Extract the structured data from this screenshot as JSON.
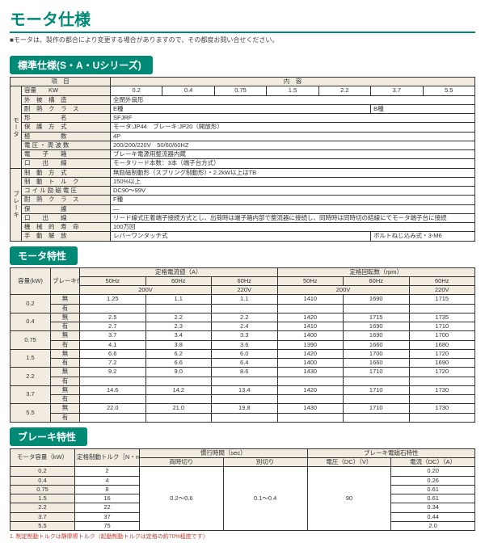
{
  "title": "モータ仕様",
  "note": "■モータは、製作の都合により変更する場合がありますので、その都度お問い合せください。",
  "section1": {
    "title": "標準仕様(S・A・Uシリーズ)",
    "head_l": "項　目",
    "head_r": "内　容",
    "kw_label": "容量　　KW",
    "kw_vals": [
      "0.2",
      "0.4",
      "0.75",
      "1.5",
      "2.2",
      "3.7",
      "5.5"
    ],
    "motor_group": "モータ",
    "brake_group": "ブレーキ",
    "rows": [
      {
        "l": "外　被　構　造",
        "v": "全閉外扇形"
      },
      {
        "l": "耐　熱　ク　ラ　ス",
        "v": "E種",
        "v2": "B種"
      },
      {
        "l": "形　　　　　名",
        "v": "SFJRF"
      },
      {
        "l": "保　護　方　式",
        "v": "モータ:JP44　ブレーキ:JP20（開放形）"
      },
      {
        "l": "極　　　　　数",
        "v": "4P"
      },
      {
        "l": "電 圧 ・ 周 波 数",
        "v": "200/200/220V　50/60/60HZ"
      },
      {
        "l": "電　　子　　箱",
        "v": "ブレーキ電源用整流器内蔵"
      },
      {
        "l": "口　　出　　線",
        "v": "モータリード本数：3本（端子台方式）"
      },
      {
        "l": "制　動　方　式",
        "v": "無励磁制動形（スプリング制動形）・2.2kW以上はTB"
      },
      {
        "l": "制　動　ト　ル　ク",
        "v": "150%以上"
      },
      {
        "l": "コ イ ル 励 磁 電 圧",
        "v": "DC90～99V"
      },
      {
        "l": "耐　熱　ク　ラ　ス",
        "v": "F種"
      },
      {
        "l": "保　　　　　護",
        "v": "—"
      },
      {
        "l": "口　　出　　線",
        "v": "リード線式圧着端子接続方式とし、出荷時は端子箱内部で整流器に接続し、同時時は同時切の結線にてモータ端子台に接続"
      },
      {
        "l": "機　械　的　寿　命",
        "v": "100万回"
      },
      {
        "l": "手　動　解　放",
        "v": "レバーワンタッチ式",
        "v_r": "ボルトねじ込み式・3-M6"
      }
    ]
  },
  "section2": {
    "title": "モータ特性",
    "head_cap": "容量(kW)",
    "head_brk": "ブレーキ付・無",
    "head_cur": "定格電流値（A）",
    "head_rpm": "定格回転数（rpm）",
    "sub": [
      "50Hz",
      "60Hz",
      "60Hz",
      "50Hz",
      "60Hz",
      "60Hz"
    ],
    "volt": [
      "200V",
      "",
      "220V",
      "200V",
      "",
      "220V"
    ],
    "rows": [
      {
        "cap": "0.2",
        "b": "無",
        "v": [
          "1.25",
          "1.1",
          "1.1",
          "1410",
          "1690",
          "1715"
        ]
      },
      {
        "cap": "",
        "b": "有",
        "v": [
          "",
          "",
          "",
          "",
          "",
          ""
        ]
      },
      {
        "cap": "0.4",
        "b": "無",
        "v": [
          "2.5",
          "2.2",
          "2.2",
          "1420",
          "1715",
          "1735"
        ]
      },
      {
        "cap": "",
        "b": "有",
        "v": [
          "2.7",
          "2.3",
          "2.4",
          "1410",
          "1690",
          "1710"
        ]
      },
      {
        "cap": "0.75",
        "b": "無",
        "v": [
          "3.7",
          "3.4",
          "3.3",
          "1400",
          "1690",
          "1700"
        ]
      },
      {
        "cap": "",
        "b": "有",
        "v": [
          "4.1",
          "3.8",
          "3.6",
          "1390",
          "1660",
          "1680"
        ]
      },
      {
        "cap": "1.5",
        "b": "無",
        "v": [
          "6.6",
          "6.2",
          "6.0",
          "1420",
          "1700",
          "1720"
        ]
      },
      {
        "cap": "",
        "b": "有",
        "v": [
          "7.2",
          "6.6",
          "6.4",
          "1400",
          "1660",
          "1690"
        ]
      },
      {
        "cap": "2.2",
        "b": "無",
        "v": [
          "9.2",
          "9.0",
          "8.6",
          "1430",
          "1710",
          "1720"
        ]
      },
      {
        "cap": "",
        "b": "有",
        "v": [
          "",
          "",
          "",
          "",
          "",
          ""
        ]
      },
      {
        "cap": "3.7",
        "b": "無",
        "v": [
          "14.6",
          "14.2",
          "13.4",
          "1420",
          "1710",
          "1730"
        ]
      },
      {
        "cap": "",
        "b": "有",
        "v": [
          "",
          "",
          "",
          "",
          "",
          ""
        ]
      },
      {
        "cap": "5.5",
        "b": "無",
        "v": [
          "22.0",
          "21.0",
          "19.8",
          "1430",
          "1710",
          "1730"
        ]
      },
      {
        "cap": "",
        "b": "有",
        "v": [
          "",
          "",
          "",
          "",
          "",
          ""
        ]
      }
    ]
  },
  "section3": {
    "title": "ブレーキ特性",
    "head_cap": "モータ容量（kW）",
    "head_trq": "定格制動トルク［N・m］",
    "head_time": "慣行時間（sec）",
    "head_mag": "ブレーキ電磁石特性",
    "sub_time": [
      "両時切り",
      "別切り"
    ],
    "sub_mag": [
      "電圧（DC）（V）",
      "電流（DC）（A）"
    ],
    "time_both": "0.2～0.6",
    "time_sep": "0.1～0.4",
    "volt": "90",
    "rows": [
      {
        "cap": "0.2",
        "trq": "2",
        "cur": "0.20"
      },
      {
        "cap": "0.4",
        "trq": "4",
        "cur": "0.26"
      },
      {
        "cap": "0.75",
        "trq": "8",
        "cur": "0.61"
      },
      {
        "cap": "1.5",
        "trq": "16",
        "cur": "0.61"
      },
      {
        "cap": "2.2",
        "trq": "22",
        "cur": "0.34"
      },
      {
        "cap": "3.7",
        "trq": "37",
        "cur": "0.44"
      },
      {
        "cap": "5.5",
        "trq": "75",
        "cur": "2.0"
      }
    ],
    "footnote": "1. 制定制動トルクは静摩擦トルク（起動制動トルクは定格の約70%程度です）"
  }
}
